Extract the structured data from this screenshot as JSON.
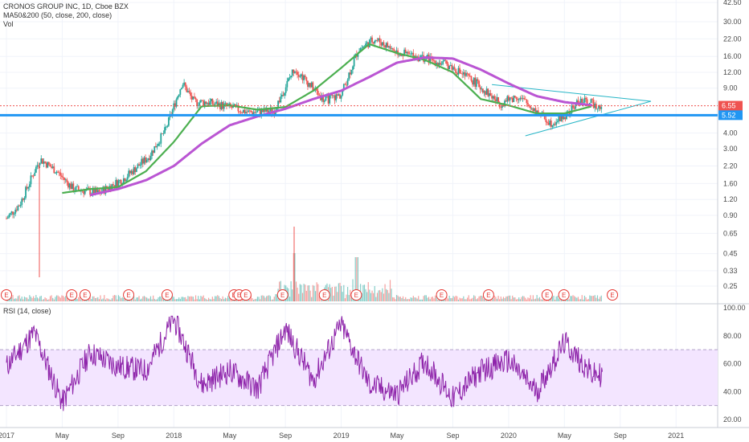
{
  "legend": {
    "title": "CRONOS GROUP INC, 1D, Cboe BZX",
    "ma": "MA50&200 (50, close, 200, close)",
    "vol": "Vol",
    "rsi": "RSI (14, close)"
  },
  "colors": {
    "up": "#26a69a",
    "down": "#ef5350",
    "ma50": "#4caf50",
    "ma200": "#ba55d3",
    "support": "#2196f3",
    "current": "#ef5350",
    "triangle": "#26b5c6",
    "rsi": "#8e24aa",
    "rsi_band": "#f3e5ff"
  },
  "chart_data": [
    {
      "type": "line",
      "panel": "price",
      "scale": "log",
      "y_ticks": [
        "42.50",
        "30.00",
        "22.00",
        "16.00",
        "12.00",
        "9.00",
        "6.55",
        "5.52",
        "4.00",
        "3.00",
        "2.20",
        "1.60",
        "1.20",
        "0.90",
        "0.65",
        "0.45",
        "0.33",
        "0.25"
      ],
      "current_price": "6.55",
      "support_level": "5.52",
      "x": [
        "2017",
        "May",
        "Sep",
        "2018",
        "May",
        "Sep",
        "2019",
        "May",
        "Sep",
        "2020",
        "May",
        "Sep",
        "2021"
      ],
      "series": [
        {
          "name": "MA50",
          "x": [
            "2017-05",
            "2017-07",
            "2017-09",
            "2017-11",
            "2018-01",
            "2018-03",
            "2018-05",
            "2018-07",
            "2018-09",
            "2018-11",
            "2019-01",
            "2019-03",
            "2019-05",
            "2019-07",
            "2019-09",
            "2019-11",
            "2020-01",
            "2020-03",
            "2020-05",
            "2020-07"
          ],
          "values": [
            1.35,
            1.45,
            1.5,
            2.0,
            3.4,
            6.5,
            6.6,
            6.1,
            6.4,
            8.6,
            13.0,
            20.0,
            17.0,
            15.0,
            12.0,
            7.4,
            6.6,
            5.7,
            5.7,
            6.5
          ]
        },
        {
          "name": "MA200",
          "x": [
            "2017-07",
            "2017-09",
            "2017-11",
            "2018-01",
            "2018-03",
            "2018-05",
            "2018-07",
            "2018-09",
            "2018-11",
            "2019-01",
            "2019-03",
            "2019-05",
            "2019-07",
            "2019-09",
            "2019-11",
            "2020-01",
            "2020-03",
            "2020-05",
            "2020-07"
          ],
          "values": [
            1.3,
            1.45,
            1.7,
            2.2,
            3.3,
            4.6,
            5.4,
            6.2,
            7.4,
            8.6,
            11.0,
            14.3,
            15.7,
            15.4,
            12.6,
            9.8,
            7.8,
            7.0,
            6.6
          ]
        }
      ],
      "pattern_markers": [
        "E",
        "E",
        "E",
        "E",
        "E",
        "E",
        "E",
        "E",
        "E",
        "E",
        "E",
        "E",
        "E",
        "E",
        "E",
        "E"
      ]
    },
    {
      "type": "line",
      "panel": "rsi",
      "y_ticks": [
        "100.00",
        "80.00",
        "60.00",
        "40.00",
        "20.00"
      ],
      "ylim": [
        20,
        100
      ],
      "band": [
        30,
        70
      ],
      "series": [
        {
          "name": "RSI",
          "x": [
            "2017-01",
            "2017-03",
            "2017-05",
            "2017-07",
            "2017-09",
            "2017-11",
            "2018-01",
            "2018-03",
            "2018-05",
            "2018-07",
            "2018-09",
            "2018-11",
            "2019-01",
            "2019-03",
            "2019-05",
            "2019-07",
            "2019-09",
            "2019-11",
            "2020-01",
            "2020-03",
            "2020-05",
            "2020-07"
          ],
          "values": [
            58,
            82,
            32,
            68,
            58,
            55,
            92,
            45,
            55,
            42,
            85,
            48,
            88,
            45,
            38,
            62,
            35,
            55,
            62,
            40,
            75,
            52
          ]
        }
      ]
    }
  ]
}
